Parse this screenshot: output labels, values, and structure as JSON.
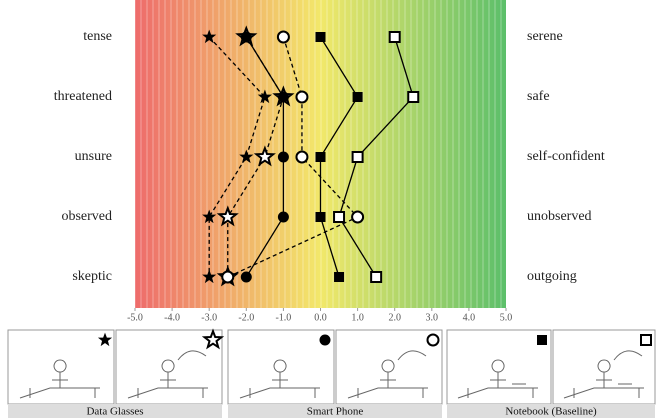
{
  "chart_data": {
    "type": "profile",
    "categories": [
      "tense",
      "threatened",
      "unsure",
      "observed",
      "skeptic"
    ],
    "right_labels": [
      "serene",
      "safe",
      "self-confident",
      "unobserved",
      "outgoing"
    ],
    "xlim": [
      -5,
      5
    ],
    "xticks": [
      {
        "value": -5,
        "label": "-5.0"
      },
      {
        "value": -4,
        "label": "-4.0"
      },
      {
        "value": -3,
        "label": "-3.0"
      },
      {
        "value": -2,
        "label": "-2.0"
      },
      {
        "value": -1,
        "label": "-1.0"
      },
      {
        "value": 0,
        "label": "0.0"
      },
      {
        "value": 1,
        "label": "1.0"
      },
      {
        "value": 2,
        "label": "2.0"
      },
      {
        "value": 3,
        "label": "3.0"
      },
      {
        "value": 4,
        "label": "4.0"
      },
      {
        "value": 5,
        "label": "5.0"
      }
    ],
    "gradient": [
      "#ee6b6b",
      "#f2e86a",
      "#5cbf6a"
    ],
    "series": [
      {
        "marker": "star",
        "filled": true,
        "size": 5,
        "dashed": true,
        "color": "#000000",
        "values": [
          -3,
          -1.5,
          -2,
          -3,
          -3
        ]
      },
      {
        "marker": "star",
        "filled": false,
        "size": 8,
        "dashed": true,
        "color": "#000000",
        "values": [
          -2,
          -1,
          -1.5,
          -2.5,
          -2.5
        ]
      },
      {
        "marker": "circle",
        "filled": true,
        "size": 5,
        "dashed": false,
        "color": "#000000",
        "values": [
          -2,
          -1,
          -1,
          -1,
          -2
        ]
      },
      {
        "marker": "circle",
        "filled": false,
        "size": 5.5,
        "dashed": true,
        "color": "#000000",
        "values": [
          -1,
          -0.5,
          -0.5,
          1,
          -2.5
        ]
      },
      {
        "marker": "square",
        "filled": true,
        "size": 4.5,
        "dashed": false,
        "color": "#000000",
        "values": [
          0,
          1,
          0,
          0,
          0.5
        ]
      },
      {
        "marker": "square",
        "filled": false,
        "size": 5,
        "dashed": false,
        "color": "#000000",
        "values": [
          2,
          2.5,
          1,
          0.5,
          1.5
        ]
      }
    ],
    "legend_groups": [
      "Data Glasses",
      "Smart Phone",
      "Notebook (Baseline)"
    ]
  }
}
